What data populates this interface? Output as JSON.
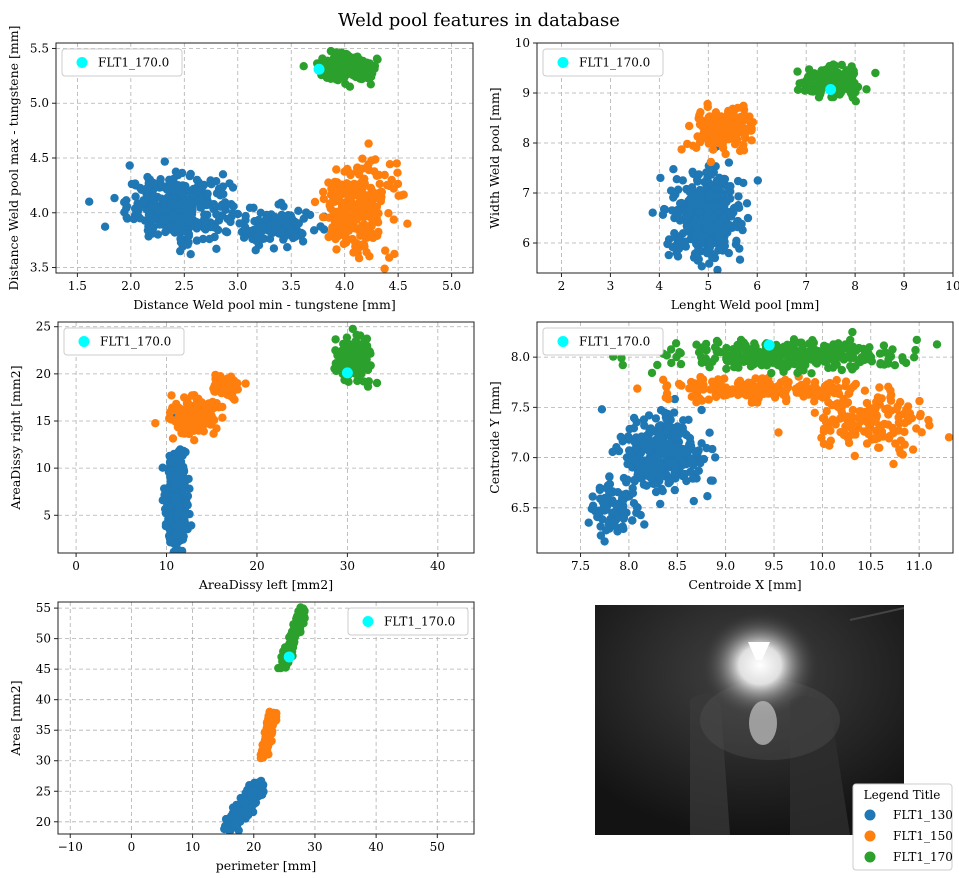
{
  "figure": {
    "title": "Weld pool features in database",
    "image_caption": "",
    "legend": {
      "title": "Legend Title",
      "entries": [
        {
          "label": "FLT1_130",
          "color": "#1f77b4"
        },
        {
          "label": "FLT1_150",
          "color": "#ff7f0e"
        },
        {
          "label": "FLT1_170",
          "color": "#2ca02c"
        }
      ]
    },
    "highlight_color": "#00ffff"
  },
  "chart_data": [
    {
      "type": "scatter",
      "xlabel": "Distance Weld pool min - tungstene [mm]",
      "ylabel": "Distance Weld pool max - tungstene [mm]",
      "xlim": [
        1.3,
        5.2
      ],
      "ylim": [
        3.45,
        5.55
      ],
      "xticks": [
        1.5,
        2.0,
        2.5,
        3.0,
        3.5,
        4.0,
        4.5,
        5.0
      ],
      "yticks": [
        3.5,
        4.0,
        4.5,
        5.0,
        5.5
      ],
      "xtick_labels": [
        "1.5",
        "2.0",
        "2.5",
        "3.0",
        "3.5",
        "4.0",
        "4.5",
        "5.0"
      ],
      "ytick_labels": [
        "3.5",
        "4.0",
        "4.5",
        "5.0",
        "5.5"
      ],
      "grid": true,
      "legend_position": "top-left",
      "highlight": {
        "label": "FLT1_170.0",
        "x": 3.76,
        "y": 5.31
      },
      "series": [
        {
          "color": "#1f77b4",
          "clusters": [
            {
              "center": [
                2.45,
                4.05
              ],
              "spread": [
                0.24,
                0.14
              ],
              "count": 360
            },
            {
              "center": [
                3.35,
                3.86
              ],
              "spread": [
                0.17,
                0.09
              ],
              "count": 110
            }
          ]
        },
        {
          "color": "#ff7f0e",
          "clusters": [
            {
              "center": [
                4.12,
                4.05
              ],
              "spread": [
                0.16,
                0.2
              ],
              "count": 260
            }
          ]
        },
        {
          "color": "#2ca02c",
          "clusters": [
            {
              "center": [
                4.05,
                5.32
              ],
              "spread": [
                0.14,
                0.07
              ],
              "count": 140
            }
          ]
        }
      ]
    },
    {
      "type": "scatter",
      "xlabel": "Lenght Weld pool [mm]",
      "ylabel": "Width Weld pool [mm]",
      "xlim": [
        1.5,
        10.0
      ],
      "ylim": [
        5.4,
        10.0
      ],
      "xticks": [
        2,
        3,
        4,
        5,
        6,
        7,
        8,
        9,
        10
      ],
      "yticks": [
        6,
        7,
        8,
        9,
        10
      ],
      "xtick_labels": [
        "2",
        "3",
        "4",
        "5",
        "6",
        "7",
        "8",
        "9",
        "10"
      ],
      "ytick_labels": [
        "6",
        "7",
        "8",
        "9",
        "10"
      ],
      "grid": true,
      "legend_position": "top-left",
      "highlight": {
        "label": "FLT1_170.0",
        "x": 7.5,
        "y": 9.07
      },
      "series": [
        {
          "color": "#1f77b4",
          "clusters": [
            {
              "center": [
                4.95,
                6.55
              ],
              "spread": [
                0.35,
                0.42
              ],
              "count": 420
            }
          ]
        },
        {
          "color": "#ff7f0e",
          "clusters": [
            {
              "center": [
                5.3,
                8.3
              ],
              "spread": [
                0.28,
                0.2
              ],
              "count": 200
            }
          ]
        },
        {
          "color": "#2ca02c",
          "clusters": [
            {
              "center": [
                7.55,
                9.22
              ],
              "spread": [
                0.3,
                0.15
              ],
              "count": 180
            }
          ]
        }
      ]
    },
    {
      "type": "scatter",
      "xlabel": "AreaDissy left [mm2]",
      "ylabel": "AreaDissy right [mm2]",
      "xlim": [
        -2.0,
        44.0
      ],
      "ylim": [
        1.0,
        25.5
      ],
      "xticks": [
        0,
        10,
        20,
        30,
        40
      ],
      "yticks": [
        5,
        10,
        15,
        20,
        25
      ],
      "xtick_labels": [
        "0",
        "10",
        "20",
        "30",
        "40"
      ],
      "ytick_labels": [
        "5",
        "10",
        "15",
        "20",
        "25"
      ],
      "grid": true,
      "legend_position": "top-left",
      "highlight": {
        "label": "FLT1_170.0",
        "x": 30.0,
        "y": 20.1
      },
      "series": [
        {
          "color": "#1f77b4",
          "clusters": [
            {
              "center": [
                11.2,
                6.5
              ],
              "spread": [
                0.6,
                2.6
              ],
              "count": 300
            }
          ]
        },
        {
          "color": "#ff7f0e",
          "clusters": [
            {
              "center": [
                13.2,
                15.6
              ],
              "spread": [
                1.3,
                0.9
              ],
              "count": 180
            },
            {
              "center": [
                16.5,
                18.5
              ],
              "spread": [
                0.8,
                0.7
              ],
              "count": 50
            }
          ]
        },
        {
          "color": "#2ca02c",
          "clusters": [
            {
              "center": [
                30.5,
                21.8
              ],
              "spread": [
                1.0,
                1.1
              ],
              "count": 150
            }
          ]
        }
      ]
    },
    {
      "type": "scatter",
      "xlabel": "Centroide X [mm]",
      "ylabel": "Centroide Y [mm]",
      "xlim": [
        7.05,
        11.35
      ],
      "ylim": [
        6.05,
        8.35
      ],
      "xticks": [
        7.5,
        8.0,
        8.5,
        9.0,
        9.5,
        10.0,
        10.5,
        11.0
      ],
      "yticks": [
        6.5,
        7.0,
        7.5,
        8.0
      ],
      "xtick_labels": [
        "7.5",
        "8.0",
        "8.5",
        "9.0",
        "9.5",
        "10.0",
        "10.5",
        "11.0"
      ],
      "ytick_labels": [
        "6.5",
        "7.0",
        "7.5",
        "8.0"
      ],
      "grid": true,
      "legend_position": "top-left",
      "highlight": {
        "label": "FLT1_170.0",
        "x": 9.45,
        "y": 8.12
      },
      "series": [
        {
          "color": "#1f77b4",
          "clusters": [
            {
              "center": [
                8.35,
                7.05
              ],
              "spread": [
                0.22,
                0.2
              ],
              "count": 300
            },
            {
              "center": [
                7.85,
                6.5
              ],
              "spread": [
                0.12,
                0.15
              ],
              "count": 90
            }
          ]
        },
        {
          "color": "#ff7f0e",
          "clusters": [
            {
              "center": [
                9.3,
                7.68
              ],
              "spread": [
                0.5,
                0.06
              ],
              "count": 200
            },
            {
              "center": [
                10.5,
                7.35
              ],
              "spread": [
                0.28,
                0.13
              ],
              "count": 160
            }
          ]
        },
        {
          "color": "#2ca02c",
          "clusters": [
            {
              "center": [
                9.7,
                8.02
              ],
              "spread": [
                0.6,
                0.07
              ],
              "count": 320
            }
          ]
        }
      ]
    },
    {
      "type": "scatter",
      "xlabel": "perimeter [mm]",
      "ylabel": "Area [mm2]",
      "xlim": [
        -12.0,
        56.0
      ],
      "ylim": [
        18.0,
        56.0
      ],
      "xticks": [
        -10,
        0,
        10,
        20,
        30,
        40,
        50
      ],
      "yticks": [
        20,
        25,
        30,
        35,
        40,
        45,
        50,
        55
      ],
      "xtick_labels": [
        "−10",
        "0",
        "10",
        "20",
        "30",
        "40",
        "50"
      ],
      "ytick_labels": [
        "20",
        "25",
        "30",
        "35",
        "40",
        "45",
        "50",
        "55"
      ],
      "grid": true,
      "legend_position": "top-right",
      "highlight": {
        "label": "FLT1_170.0",
        "x": 25.8,
        "y": 47.0
      },
      "series": [
        {
          "color": "#1f77b4",
          "lines": [
            {
              "from": [
                16.3,
                19.3
              ],
              "to": [
                21.0,
                26.0
              ],
              "width": 0.55,
              "count": 260
            }
          ]
        },
        {
          "color": "#ff7f0e",
          "lines": [
            {
              "from": [
                21.5,
                30.5
              ],
              "to": [
                23.3,
                38.0
              ],
              "width": 0.35,
              "count": 150
            }
          ]
        },
        {
          "color": "#2ca02c",
          "lines": [
            {
              "from": [
                24.8,
                45.0
              ],
              "to": [
                28.0,
                54.8
              ],
              "width": 0.35,
              "count": 150
            }
          ]
        }
      ]
    }
  ]
}
